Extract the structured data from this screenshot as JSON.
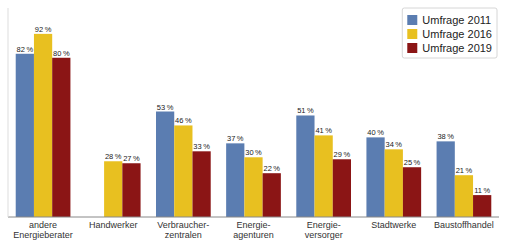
{
  "chart_data": {
    "type": "bar",
    "categories": [
      "andere\nEnergieberater",
      "Handwerker",
      "Verbraucher-\nzentralen",
      "Energie-\nagenturen",
      "Energie-\nversorger",
      "Stadtwerke",
      "Baustoffhandel"
    ],
    "series": [
      {
        "name": "Umfrage 2011",
        "color": "#5b7db1",
        "values": [
          82,
          null,
          53,
          37,
          51,
          40,
          38
        ],
        "value_labels": [
          "82 %",
          null,
          "53 %",
          "37 %",
          "51 %",
          "40 %",
          "38 %"
        ]
      },
      {
        "name": "Umfrage 2016",
        "color": "#e8c020",
        "values": [
          92,
          28,
          46,
          30,
          41,
          34,
          21
        ],
        "value_labels": [
          "92 %",
          "28 %",
          "46 %",
          "30 %",
          "41 %",
          "34 %",
          "21 %"
        ]
      },
      {
        "name": "Umfrage 2019",
        "color": "#8b1515",
        "values": [
          80,
          27,
          33,
          22,
          29,
          25,
          11
        ],
        "value_labels": [
          "80 %",
          "27 %",
          "33 %",
          "22 %",
          "29 %",
          "25 %",
          "11 %"
        ]
      }
    ],
    "ylim": [
      0,
      105
    ],
    "grid": false,
    "legend": "upper right",
    "data_labels": true,
    "tick_labels": "x"
  }
}
